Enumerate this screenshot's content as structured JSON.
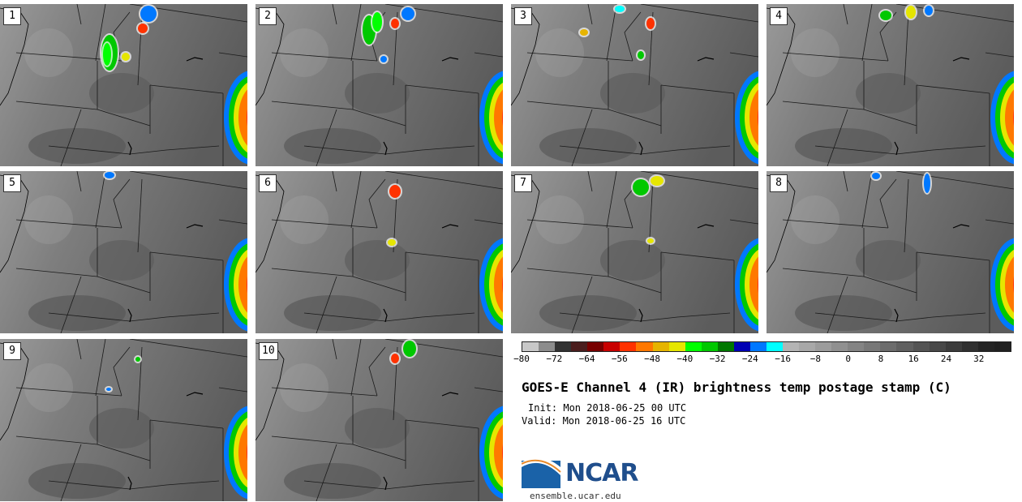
{
  "panels": [
    {
      "label": "1"
    },
    {
      "label": "2"
    },
    {
      "label": "3"
    },
    {
      "label": "4"
    },
    {
      "label": "5"
    },
    {
      "label": "6"
    },
    {
      "label": "7"
    },
    {
      "label": "8"
    },
    {
      "label": "9"
    },
    {
      "label": "10"
    }
  ],
  "colorbar": {
    "colors": [
      "#c8c8c8",
      "#8c8c8c",
      "#323232",
      "#4b1e1e",
      "#780000",
      "#c80000",
      "#ff3200",
      "#ff7800",
      "#e6b400",
      "#e6e600",
      "#00ff00",
      "#00c800",
      "#007800",
      "#0000b4",
      "#0078ff",
      "#00ffff",
      "#b4b4b4",
      "#a8a8a8",
      "#9c9c9c",
      "#909090",
      "#848484",
      "#787878",
      "#6c6c6c",
      "#606060",
      "#545454",
      "#484848",
      "#3c3c3c",
      "#303030",
      "#242424",
      "#202020"
    ],
    "ticks": [
      "−80",
      "−72",
      "−64",
      "−56",
      "−48",
      "−40",
      "−32",
      "−24",
      "−16",
      "−8",
      "0",
      "8",
      "16",
      "24",
      "32"
    ]
  },
  "title": "GOES-E Channel 4 (IR) brightness temp postage stamp (C)",
  "init": "Init: Mon 2018-06-25 00 UTC",
  "valid": "Valid: Mon 2018-06-25 16 UTC",
  "logo": {
    "text": "NCAR",
    "url": "ensemble.ucar.edu"
  }
}
